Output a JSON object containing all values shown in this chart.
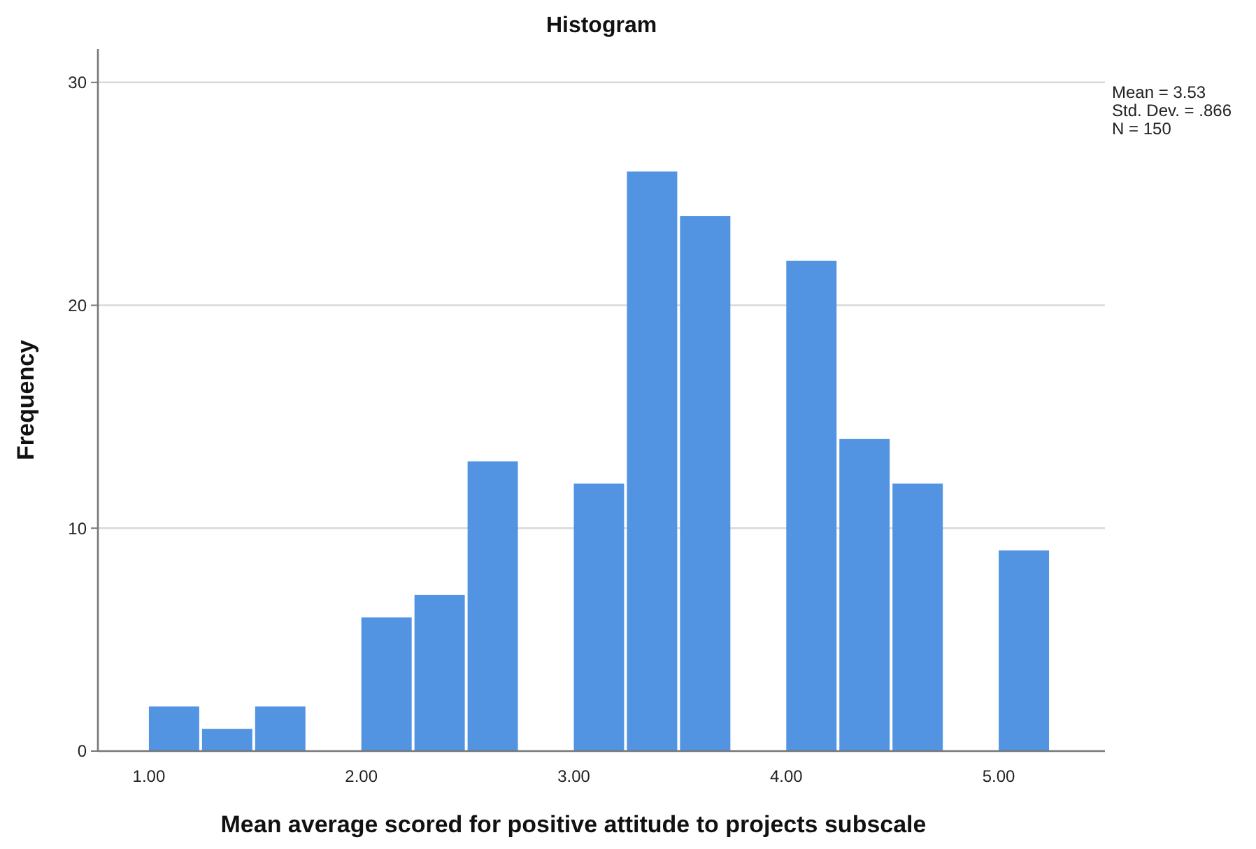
{
  "chart_data": {
    "type": "histogram",
    "title": "Histogram",
    "xlabel": "Mean average scored for positive attitude to projects subscale",
    "ylabel": "Frequency",
    "bins": [
      1.0,
      1.25,
      1.5,
      1.75,
      2.0,
      2.25,
      2.5,
      2.75,
      3.0,
      3.25,
      3.5,
      3.75,
      4.0,
      4.25,
      4.5,
      4.75,
      5.0,
      5.25
    ],
    "values": [
      2,
      1,
      2,
      0,
      6,
      7,
      13,
      0,
      12,
      26,
      24,
      0,
      22,
      14,
      12,
      0,
      9
    ],
    "color": "#5294e2",
    "xlim": [
      0.76,
      5.5
    ],
    "xticks": [
      {
        "value": 1,
        "label": "1.00"
      },
      {
        "value": 2,
        "label": "2.00"
      },
      {
        "value": 3,
        "label": "3.00"
      },
      {
        "value": 4,
        "label": "4.00"
      },
      {
        "value": 5,
        "label": "5.00"
      }
    ],
    "ylim": [
      0,
      31.5
    ],
    "yticks": [
      0,
      10,
      20,
      30
    ],
    "grid": "y",
    "annotations": [
      "Mean = 3.53",
      "Std. Dev. = .866",
      "N = 150"
    ]
  }
}
